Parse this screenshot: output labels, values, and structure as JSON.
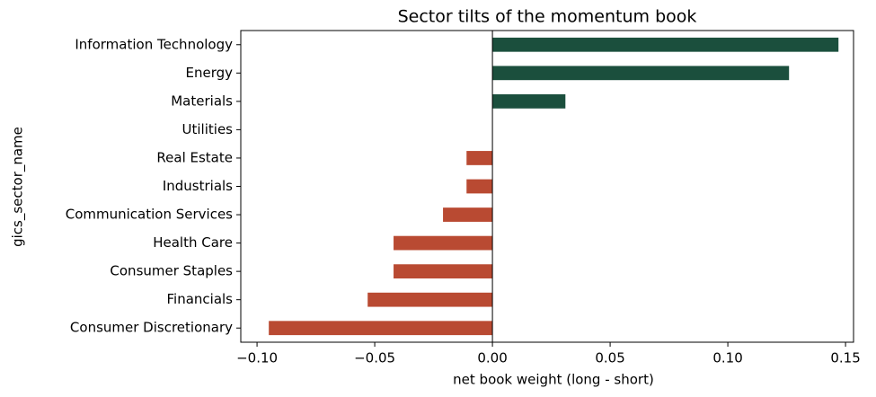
{
  "chart_data": {
    "type": "barh",
    "title": "Sector tilts of the momentum book",
    "xlabel": "net book weight  (long - short)",
    "ylabel": "gics_sector_name",
    "categories": [
      "Information Technology",
      "Energy",
      "Materials",
      "Utilities",
      "Real Estate",
      "Industrials",
      "Communication Services",
      "Health Care",
      "Consumer Staples",
      "Financials",
      "Consumer Discretionary"
    ],
    "values": [
      0.147,
      0.126,
      0.031,
      0,
      -0.011,
      -0.011,
      -0.021,
      -0.042,
      -0.042,
      -0.053,
      -0.095
    ],
    "colors": [
      "#1b4f3d",
      "#1b4f3d",
      "#1b4f3d",
      "#1b4f3d",
      "#b94a32",
      "#b94a32",
      "#b94a32",
      "#b94a32",
      "#b94a32",
      "#b94a32",
      "#b94a32"
    ],
    "xlim": [
      -0.1069,
      0.1534
    ],
    "xticks": [
      {
        "value": -0.1,
        "label": "−0.10"
      },
      {
        "value": -0.05,
        "label": "−0.05"
      },
      {
        "value": 0,
        "label": "0.00"
      },
      {
        "value": 0.05,
        "label": "0.05"
      },
      {
        "value": 0.1,
        "label": "0.10"
      },
      {
        "value": 0.15,
        "label": "0.15"
      }
    ],
    "zero_line": true
  }
}
